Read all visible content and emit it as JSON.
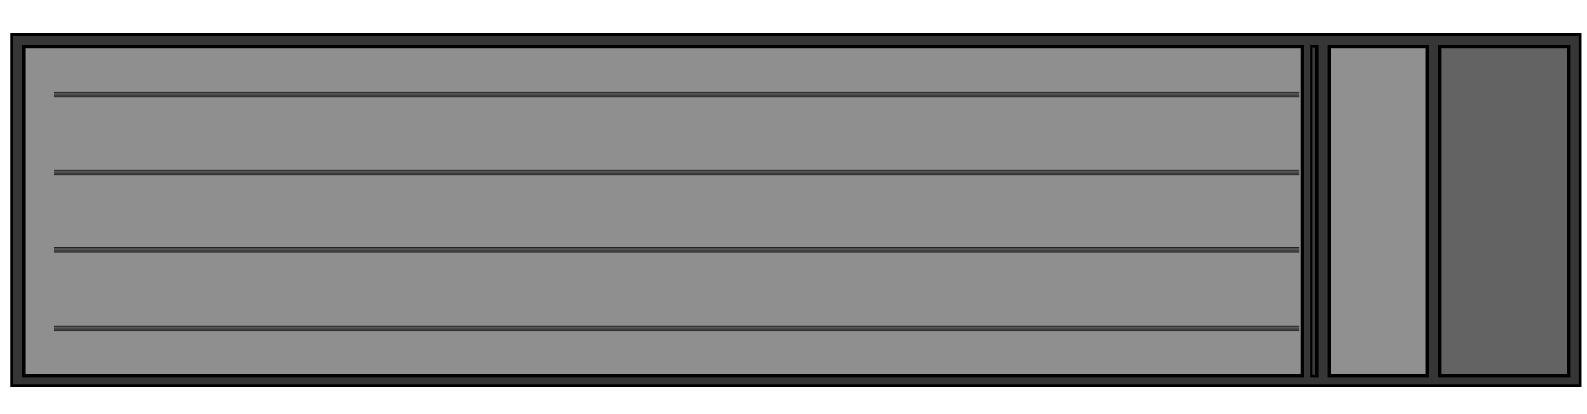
{
  "main": {
    "rails": 4
  },
  "colors": {
    "frame": "#363636",
    "main_panel": "#8f8f8f",
    "side_panel": "#909090",
    "end_panel": "#636363",
    "rail": "#3f3f3f"
  }
}
